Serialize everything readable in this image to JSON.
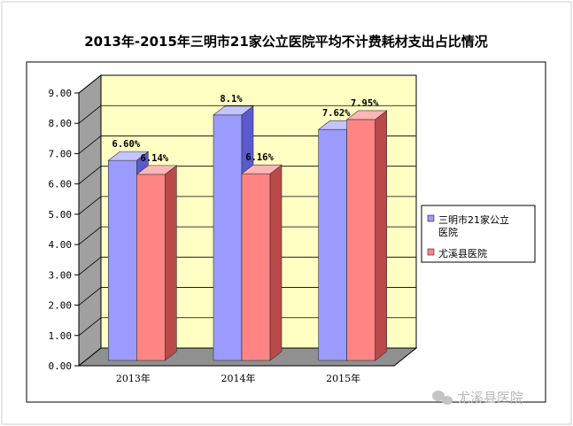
{
  "chart_data": {
    "type": "bar",
    "title": "2013年-2015年三明市21家公立医院平均不计费耗材支出占比情况",
    "categories": [
      "2013年",
      "2014年",
      "2015年"
    ],
    "series": [
      {
        "name": "三明市21家公立医院",
        "values": [
          6.6,
          8.1,
          7.62
        ],
        "labels": [
          "6.60%",
          "8.1%",
          "7.62%"
        ]
      },
      {
        "name": "尤溪县医院",
        "values": [
          6.14,
          6.16,
          7.95
        ],
        "labels": [
          "6.14%",
          "6.16%",
          "7.95%"
        ]
      }
    ],
    "y_ticks": [
      "0.00",
      "1.00",
      "2.00",
      "3.00",
      "4.00",
      "5.00",
      "6.00",
      "7.00",
      "8.00",
      "9.00"
    ],
    "ylim": [
      0,
      9
    ],
    "grid": true,
    "legend_position": "right",
    "three_d": true
  },
  "legend": {
    "line1": "三明市21家公立",
    "line2": "医院",
    "item2": "尤溪县医院"
  },
  "watermark": "尤溪县医院",
  "colors": {
    "series1_front": "#9b9bfd",
    "series1_side": "#5a5acc",
    "series1_top": "#c4c4ff",
    "series2_front": "#ff8585",
    "series2_side": "#b84a4a",
    "series2_top": "#ffb6b6",
    "back_wall": "#ffffc4",
    "floor": "#909090",
    "side_wall": "#a0a0a0"
  }
}
